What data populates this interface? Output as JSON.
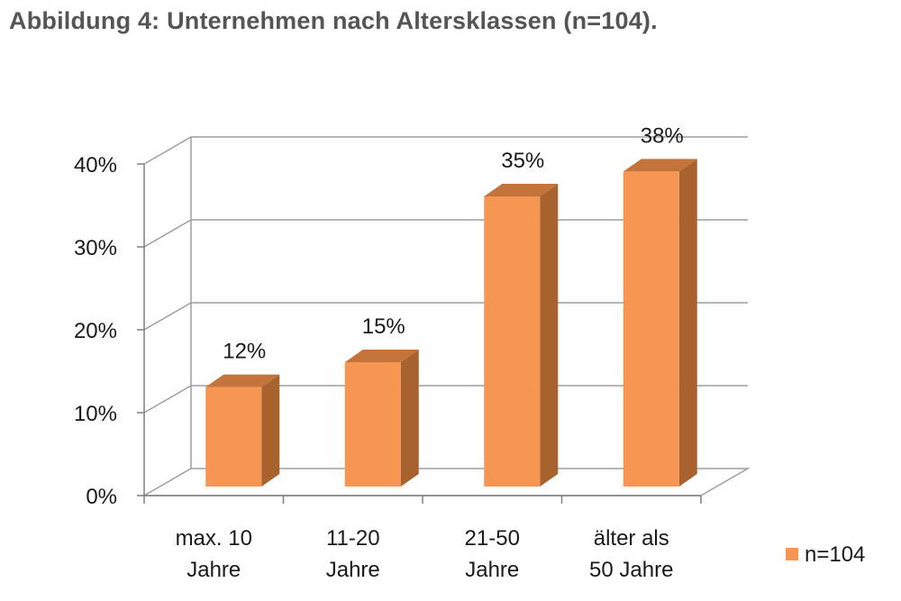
{
  "figure": {
    "title": "Abbildung 4: Unternehmen nach Altersklassen (n=104)."
  },
  "chart_data": {
    "type": "bar",
    "style": "3d-column",
    "categories": [
      [
        "max. 10",
        "Jahre"
      ],
      [
        "11-20",
        "Jahre"
      ],
      [
        "21-50",
        "Jahre"
      ],
      [
        "älter als",
        "50 Jahre"
      ]
    ],
    "series": [
      {
        "name": "n=104",
        "values": [
          12,
          15,
          35,
          38
        ]
      }
    ],
    "data_labels": [
      "12%",
      "15%",
      "35%",
      "38%"
    ],
    "y_ticks": [
      "0%",
      "10%",
      "20%",
      "30%",
      "40%"
    ],
    "ylim": [
      0,
      40
    ],
    "y_unit": "%",
    "grid": true,
    "legend_position": "right",
    "colors": {
      "bar_front": "#F79652",
      "bar_side": "#A8622E",
      "bar_top": "#C4733A",
      "grid": "#9e9e9e",
      "axis": "#7f7f7f"
    }
  }
}
